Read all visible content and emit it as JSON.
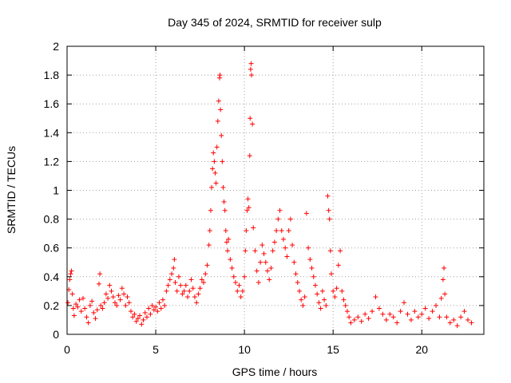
{
  "chart_data": {
    "type": "scatter",
    "title": "Day 345 of 2024, SRMTID for receiver sulp",
    "xlabel": "GPS time / hours",
    "ylabel": "SRMTID / TECUs",
    "xlim": [
      0,
      23.5
    ],
    "ylim": [
      0,
      2
    ],
    "xticks": [
      0,
      5,
      10,
      15,
      20
    ],
    "xtick_labels": [
      "0",
      "5",
      "10",
      "15",
      "20"
    ],
    "yticks": [
      0,
      0.2,
      0.4,
      0.6,
      0.8,
      1,
      1.2,
      1.4,
      1.6,
      1.8,
      2
    ],
    "ytick_labels": [
      "0",
      "0.2",
      "0.4",
      "0.6",
      "0.8",
      "1",
      "1.2",
      "1.4",
      "1.6",
      "1.8",
      "2"
    ],
    "grid": true,
    "marker": "+",
    "series_color": "#ff0000",
    "series": [
      {
        "name": "SRMTID",
        "points": [
          [
            0.05,
            0.22
          ],
          [
            0.1,
            0.31
          ],
          [
            0.15,
            0.38
          ],
          [
            0.2,
            0.42
          ],
          [
            0.25,
            0.44
          ],
          [
            0.3,
            0.28
          ],
          [
            0.35,
            0.18
          ],
          [
            0.4,
            0.13
          ],
          [
            0.5,
            0.21
          ],
          [
            0.6,
            0.19
          ],
          [
            0.7,
            0.24
          ],
          [
            0.8,
            0.16
          ],
          [
            0.9,
            0.25
          ],
          [
            1.0,
            0.18
          ],
          [
            1.1,
            0.12
          ],
          [
            1.2,
            0.08
          ],
          [
            1.3,
            0.2
          ],
          [
            1.4,
            0.23
          ],
          [
            1.5,
            0.15
          ],
          [
            1.6,
            0.11
          ],
          [
            1.7,
            0.17
          ],
          [
            1.8,
            0.35
          ],
          [
            1.85,
            0.42
          ],
          [
            1.9,
            0.2
          ],
          [
            2.0,
            0.18
          ],
          [
            2.1,
            0.22
          ],
          [
            2.2,
            0.28
          ],
          [
            2.3,
            0.25
          ],
          [
            2.4,
            0.34
          ],
          [
            2.5,
            0.3
          ],
          [
            2.6,
            0.26
          ],
          [
            2.7,
            0.22
          ],
          [
            2.8,
            0.2
          ],
          [
            2.9,
            0.27
          ],
          [
            3.0,
            0.24
          ],
          [
            3.1,
            0.32
          ],
          [
            3.2,
            0.28
          ],
          [
            3.3,
            0.2
          ],
          [
            3.4,
            0.26
          ],
          [
            3.5,
            0.22
          ],
          [
            3.6,
            0.16
          ],
          [
            3.7,
            0.12
          ],
          [
            3.8,
            0.14
          ],
          [
            3.9,
            0.09
          ],
          [
            4.0,
            0.11
          ],
          [
            4.1,
            0.13
          ],
          [
            4.2,
            0.07
          ],
          [
            4.3,
            0.1
          ],
          [
            4.4,
            0.15
          ],
          [
            4.5,
            0.12
          ],
          [
            4.6,
            0.18
          ],
          [
            4.7,
            0.14
          ],
          [
            4.8,
            0.2
          ],
          [
            4.9,
            0.17
          ],
          [
            5.0,
            0.19
          ],
          [
            5.1,
            0.16
          ],
          [
            5.2,
            0.22
          ],
          [
            5.3,
            0.18
          ],
          [
            5.4,
            0.24
          ],
          [
            5.5,
            0.2
          ],
          [
            5.6,
            0.3
          ],
          [
            5.7,
            0.34
          ],
          [
            5.8,
            0.38
          ],
          [
            5.9,
            0.42
          ],
          [
            6.0,
            0.46
          ],
          [
            6.05,
            0.52
          ],
          [
            6.1,
            0.36
          ],
          [
            6.2,
            0.3
          ],
          [
            6.3,
            0.4
          ],
          [
            6.4,
            0.34
          ],
          [
            6.5,
            0.28
          ],
          [
            6.6,
            0.3
          ],
          [
            6.7,
            0.34
          ],
          [
            6.8,
            0.26
          ],
          [
            6.9,
            0.3
          ],
          [
            7.0,
            0.38
          ],
          [
            7.1,
            0.32
          ],
          [
            7.2,
            0.26
          ],
          [
            7.3,
            0.22
          ],
          [
            7.4,
            0.28
          ],
          [
            7.5,
            0.32
          ],
          [
            7.6,
            0.38
          ],
          [
            7.7,
            0.36
          ],
          [
            7.8,
            0.42
          ],
          [
            7.9,
            0.48
          ],
          [
            8.0,
            0.62
          ],
          [
            8.05,
            0.72
          ],
          [
            8.1,
            0.86
          ],
          [
            8.15,
            1.02
          ],
          [
            8.2,
            1.15
          ],
          [
            8.25,
            1.26
          ],
          [
            8.3,
            1.2
          ],
          [
            8.35,
            1.12
          ],
          [
            8.4,
            1.05
          ],
          [
            8.45,
            1.3
          ],
          [
            8.5,
            1.48
          ],
          [
            8.55,
            1.62
          ],
          [
            8.6,
            1.78
          ],
          [
            8.62,
            1.8
          ],
          [
            8.65,
            1.56
          ],
          [
            8.7,
            1.38
          ],
          [
            8.75,
            1.2
          ],
          [
            8.8,
            1.02
          ],
          [
            8.85,
            0.92
          ],
          [
            8.9,
            0.86
          ],
          [
            8.95,
            0.72
          ],
          [
            9.0,
            0.64
          ],
          [
            9.05,
            0.58
          ],
          [
            9.1,
            0.66
          ],
          [
            9.2,
            0.52
          ],
          [
            9.3,
            0.46
          ],
          [
            9.4,
            0.4
          ],
          [
            9.5,
            0.36
          ],
          [
            9.6,
            0.3
          ],
          [
            9.7,
            0.34
          ],
          [
            9.8,
            0.26
          ],
          [
            9.9,
            0.3
          ],
          [
            10.0,
            0.4
          ],
          [
            10.05,
            0.58
          ],
          [
            10.1,
            0.72
          ],
          [
            10.15,
            0.86
          ],
          [
            10.2,
            0.94
          ],
          [
            10.25,
            0.88
          ],
          [
            10.3,
            1.24
          ],
          [
            10.32,
            1.5
          ],
          [
            10.35,
            1.84
          ],
          [
            10.38,
            1.88
          ],
          [
            10.4,
            1.8
          ],
          [
            10.45,
            1.46
          ],
          [
            10.5,
            0.74
          ],
          [
            10.6,
            0.58
          ],
          [
            10.7,
            0.44
          ],
          [
            10.8,
            0.36
          ],
          [
            10.9,
            0.5
          ],
          [
            11.0,
            0.62
          ],
          [
            11.1,
            0.56
          ],
          [
            11.2,
            0.5
          ],
          [
            11.3,
            0.44
          ],
          [
            11.4,
            0.38
          ],
          [
            11.5,
            0.46
          ],
          [
            11.6,
            0.58
          ],
          [
            11.7,
            0.64
          ],
          [
            11.8,
            0.72
          ],
          [
            11.9,
            0.8
          ],
          [
            12.0,
            0.86
          ],
          [
            12.1,
            0.72
          ],
          [
            12.2,
            0.66
          ],
          [
            12.3,
            0.6
          ],
          [
            12.4,
            0.54
          ],
          [
            12.5,
            0.72
          ],
          [
            12.6,
            0.8
          ],
          [
            12.7,
            0.62
          ],
          [
            12.8,
            0.5
          ],
          [
            12.9,
            0.42
          ],
          [
            13.0,
            0.36
          ],
          [
            13.1,
            0.3
          ],
          [
            13.2,
            0.24
          ],
          [
            13.3,
            0.2
          ],
          [
            13.4,
            0.26
          ],
          [
            13.5,
            0.84
          ],
          [
            13.6,
            0.6
          ],
          [
            13.7,
            0.52
          ],
          [
            13.8,
            0.46
          ],
          [
            13.9,
            0.4
          ],
          [
            14.0,
            0.34
          ],
          [
            14.1,
            0.28
          ],
          [
            14.2,
            0.22
          ],
          [
            14.3,
            0.18
          ],
          [
            14.4,
            0.3
          ],
          [
            14.5,
            0.24
          ],
          [
            14.6,
            0.2
          ],
          [
            14.7,
            0.96
          ],
          [
            14.75,
            0.86
          ],
          [
            14.8,
            0.8
          ],
          [
            14.85,
            0.58
          ],
          [
            14.9,
            0.42
          ],
          [
            15.0,
            0.3
          ],
          [
            15.1,
            0.26
          ],
          [
            15.2,
            0.32
          ],
          [
            15.3,
            0.48
          ],
          [
            15.4,
            0.58
          ],
          [
            15.5,
            0.3
          ],
          [
            15.6,
            0.24
          ],
          [
            15.7,
            0.2
          ],
          [
            15.8,
            0.16
          ],
          [
            15.9,
            0.12
          ],
          [
            16.0,
            0.08
          ],
          [
            16.2,
            0.1
          ],
          [
            16.4,
            0.12
          ],
          [
            16.6,
            0.09
          ],
          [
            16.8,
            0.14
          ],
          [
            17.0,
            0.11
          ],
          [
            17.2,
            0.16
          ],
          [
            17.4,
            0.26
          ],
          [
            17.6,
            0.18
          ],
          [
            17.8,
            0.14
          ],
          [
            18.0,
            0.1
          ],
          [
            18.2,
            0.14
          ],
          [
            18.4,
            0.12
          ],
          [
            18.6,
            0.08
          ],
          [
            18.8,
            0.16
          ],
          [
            19.0,
            0.22
          ],
          [
            19.2,
            0.14
          ],
          [
            19.4,
            0.1
          ],
          [
            19.6,
            0.16
          ],
          [
            19.8,
            0.12
          ],
          [
            20.0,
            0.14
          ],
          [
            20.2,
            0.18
          ],
          [
            20.4,
            0.11
          ],
          [
            20.6,
            0.16
          ],
          [
            20.8,
            0.2
          ],
          [
            21.0,
            0.12
          ],
          [
            21.1,
            0.25
          ],
          [
            21.2,
            0.38
          ],
          [
            21.25,
            0.46
          ],
          [
            21.3,
            0.28
          ],
          [
            21.4,
            0.12
          ],
          [
            21.6,
            0.08
          ],
          [
            21.8,
            0.1
          ],
          [
            22.0,
            0.06
          ],
          [
            22.2,
            0.12
          ],
          [
            22.4,
            0.16
          ],
          [
            22.6,
            0.1
          ],
          [
            22.8,
            0.08
          ]
        ]
      }
    ]
  }
}
